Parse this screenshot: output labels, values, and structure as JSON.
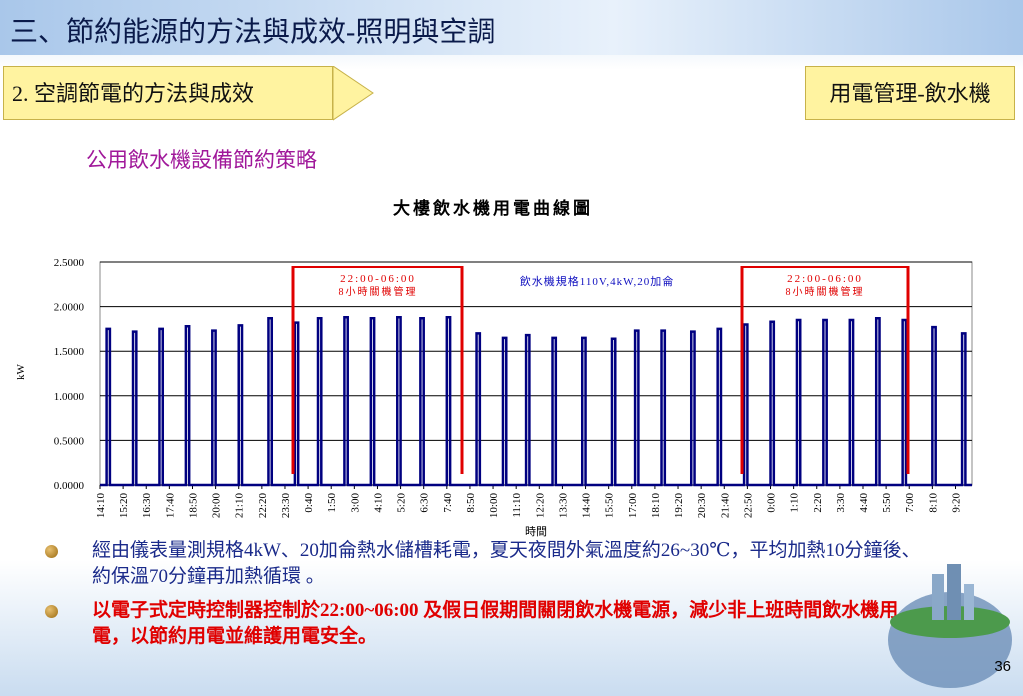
{
  "header": {
    "title": "三、節約能源的方法與成效-照明與空調",
    "section": "2. 空調節電的方法與成效",
    "topic": "用電管理-飲水機"
  },
  "subtitle": "公用飲水機設備節約策略",
  "chart_data": {
    "type": "line",
    "title": "大樓飲水機用電曲線圖",
    "y_label": "kW",
    "x_label": "時間",
    "annotations": [
      "22:00-06:00",
      "8小時關機管理",
      "飲水機規格110V,4kW,20加侖",
      "22:00-06:00",
      "8小時關機管理"
    ],
    "xlim": [
      0,
      2640
    ],
    "ylim": [
      0,
      2.5
    ],
    "grid": true,
    "xticks": [
      {
        "value": 0,
        "label": "14:10"
      },
      {
        "value": 70,
        "label": "15:20"
      },
      {
        "value": 140,
        "label": "16:30"
      },
      {
        "value": 210,
        "label": "17:40"
      },
      {
        "value": 280,
        "label": "18:50"
      },
      {
        "value": 350,
        "label": "20:00"
      },
      {
        "value": 420,
        "label": "21:10"
      },
      {
        "value": 490,
        "label": "22:20"
      },
      {
        "value": 560,
        "label": "23:30"
      },
      {
        "value": 630,
        "label": "0:40"
      },
      {
        "value": 700,
        "label": "1:50"
      },
      {
        "value": 770,
        "label": "3:00"
      },
      {
        "value": 840,
        "label": "4:10"
      },
      {
        "value": 910,
        "label": "5:20"
      },
      {
        "value": 980,
        "label": "6:30"
      },
      {
        "value": 1050,
        "label": "7:40"
      },
      {
        "value": 1120,
        "label": "8:50"
      },
      {
        "value": 1190,
        "label": "10:00"
      },
      {
        "value": 1260,
        "label": "11:10"
      },
      {
        "value": 1330,
        "label": "12:20"
      },
      {
        "value": 1400,
        "label": "13:30"
      },
      {
        "value": 1470,
        "label": "14:40"
      },
      {
        "value": 1540,
        "label": "15:50"
      },
      {
        "value": 1610,
        "label": "17:00"
      },
      {
        "value": 1680,
        "label": "18:10"
      },
      {
        "value": 1750,
        "label": "19:20"
      },
      {
        "value": 1820,
        "label": "20:30"
      },
      {
        "value": 1890,
        "label": "21:40"
      },
      {
        "value": 1960,
        "label": "22:50"
      },
      {
        "value": 2030,
        "label": "0:00"
      },
      {
        "value": 2100,
        "label": "1:10"
      },
      {
        "value": 2170,
        "label": "2:20"
      },
      {
        "value": 2240,
        "label": "3:30"
      },
      {
        "value": 2310,
        "label": "4:40"
      },
      {
        "value": 2380,
        "label": "5:50"
      },
      {
        "value": 2450,
        "label": "7:00"
      },
      {
        "value": 2520,
        "label": "8:10"
      },
      {
        "value": 2590,
        "label": "9:20"
      }
    ],
    "yticks": [
      {
        "value": 0,
        "label": "0.0000"
      },
      {
        "value": 0.5,
        "label": "0.5000"
      },
      {
        "value": 1,
        "label": "1.0000"
      },
      {
        "value": 1.5,
        "label": "1.5000"
      },
      {
        "value": 2,
        "label": "2.0000"
      },
      {
        "value": 2.5,
        "label": "2.5000"
      }
    ],
    "color": "#000080",
    "x": [
      0,
      20,
      20,
      30,
      30,
      100,
      100,
      110,
      110,
      180,
      180,
      190,
      190,
      260,
      260,
      270,
      270,
      340,
      340,
      350,
      350,
      420,
      420,
      430,
      430,
      510,
      510,
      520,
      520,
      590,
      590,
      600,
      600,
      660,
      660,
      670,
      670,
      740,
      740,
      750,
      750,
      820,
      820,
      830,
      830,
      900,
      900,
      910,
      910,
      970,
      970,
      980,
      980,
      1050,
      1050,
      1060,
      1060,
      1140,
      1140,
      1150,
      1150,
      1220,
      1220,
      1230,
      1230,
      1290,
      1290,
      1300,
      1300,
      1370,
      1370,
      1380,
      1380,
      1460,
      1460,
      1470,
      1470,
      1550,
      1550,
      1560,
      1560,
      1620,
      1620,
      1630,
      1630,
      1700,
      1700,
      1710,
      1710,
      1790,
      1790,
      1800,
      1800,
      1870,
      1870,
      1880,
      1880,
      1950,
      1950,
      1960,
      1960,
      2030,
      2030,
      2040,
      2040,
      2110,
      2110,
      2120,
      2120,
      2190,
      2190,
      2200,
      2200,
      2270,
      2270,
      2280,
      2280,
      2350,
      2350,
      2360,
      2360,
      2430,
      2430,
      2440,
      2440,
      2520,
      2520,
      2530,
      2530,
      2610,
      2610,
      2620,
      2620,
      2640
    ],
    "values": [
      0,
      0,
      1.75,
      1.75,
      0,
      0,
      1.72,
      1.72,
      0,
      0,
      1.75,
      1.75,
      0,
      0,
      1.78,
      1.78,
      0,
      0,
      1.73,
      1.73,
      0,
      0,
      1.79,
      1.79,
      0,
      0,
      1.87,
      1.87,
      0,
      0,
      1.82,
      1.82,
      0,
      0,
      1.87,
      1.87,
      0,
      0,
      1.88,
      1.88,
      0,
      0,
      1.87,
      1.87,
      0,
      0,
      1.88,
      1.88,
      0,
      0,
      1.87,
      1.87,
      0,
      0,
      1.88,
      1.88,
      0,
      0,
      1.7,
      1.7,
      0,
      0,
      1.65,
      1.65,
      0,
      0,
      1.68,
      1.68,
      0,
      0,
      1.65,
      1.65,
      0,
      0,
      1.65,
      1.65,
      0,
      0,
      1.64,
      1.64,
      0,
      0,
      1.73,
      1.73,
      0,
      0,
      1.73,
      1.73,
      0,
      0,
      1.72,
      1.72,
      0,
      0,
      1.75,
      1.75,
      0,
      0,
      1.8,
      1.8,
      0,
      0,
      1.83,
      1.83,
      0,
      0,
      1.85,
      1.85,
      0,
      0,
      1.85,
      1.85,
      0,
      0,
      1.85,
      1.85,
      0,
      0,
      1.87,
      1.87,
      0,
      0,
      1.85,
      1.85,
      0,
      0,
      1.77,
      1.77,
      0,
      0,
      1.7,
      1.7,
      0,
      0
    ]
  },
  "bullets": [
    "經由儀表量測規格4kW、20加侖熱水儲槽耗電，夏天夜間外氣溫度約26~30℃，平均加熱10分鐘後、約保溫70分鐘再加熱循環 。",
    "以電子式定時控制器控制於22:00~06:00 及假日假期間關閉飲水機電源，減少非上班時間飲水機用電，以節約用電並維護用電安全。"
  ],
  "page_number": "36"
}
